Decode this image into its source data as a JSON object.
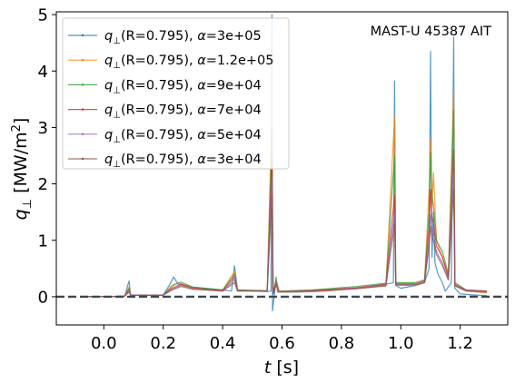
{
  "chart_data": {
    "type": "line",
    "annotation": "MAST-U 45387 AIT",
    "xlabel": {
      "var": "t",
      "unit": "[s]"
    },
    "ylabel": {
      "var": "q",
      "sub": "⊥",
      "unit": "[MW/m",
      "unit_sup": "2",
      "unit_end": "]"
    },
    "xlim": [
      -0.16,
      1.36
    ],
    "ylim": [
      -0.5,
      5.05
    ],
    "xticks": [
      "0.0",
      "0.2",
      "0.4",
      "0.6",
      "0.8",
      "1.0",
      "1.2"
    ],
    "yticks": [
      "0",
      "1",
      "2",
      "3",
      "4",
      "5"
    ],
    "zero_line": {
      "y": 0,
      "style": "dashed",
      "color": "#3c4654"
    },
    "legend_position": "upper-left",
    "series": [
      {
        "label": "q⊥(R=0.795), α=3e+05",
        "color": "#1f77b4",
        "points": [
          [
            -0.08,
            0.0
          ],
          [
            0.0,
            0.0
          ],
          [
            0.07,
            0.01
          ],
          [
            0.085,
            0.28
          ],
          [
            0.09,
            0.03
          ],
          [
            0.12,
            0.02
          ],
          [
            0.2,
            0.03
          ],
          [
            0.22,
            0.2
          ],
          [
            0.235,
            0.35
          ],
          [
            0.25,
            0.22
          ],
          [
            0.3,
            0.17
          ],
          [
            0.4,
            0.12
          ],
          [
            0.43,
            0.1
          ],
          [
            0.44,
            0.55
          ],
          [
            0.45,
            0.12
          ],
          [
            0.5,
            0.1
          ],
          [
            0.55,
            0.09
          ],
          [
            0.563,
            0.1
          ],
          [
            0.566,
            5.0
          ],
          [
            0.568,
            -0.25
          ],
          [
            0.575,
            0.05
          ],
          [
            0.58,
            0.35
          ],
          [
            0.585,
            0.08
          ],
          [
            0.65,
            0.08
          ],
          [
            0.75,
            0.1
          ],
          [
            0.85,
            0.15
          ],
          [
            0.95,
            0.22
          ],
          [
            0.975,
            0.25
          ],
          [
            0.979,
            3.82
          ],
          [
            0.983,
            0.2
          ],
          [
            1.0,
            0.15
          ],
          [
            1.05,
            0.2
          ],
          [
            1.08,
            0.25
          ],
          [
            1.095,
            0.5
          ],
          [
            1.1,
            4.35
          ],
          [
            1.105,
            0.7
          ],
          [
            1.11,
            1.5
          ],
          [
            1.115,
            0.6
          ],
          [
            1.125,
            0.4
          ],
          [
            1.14,
            0.25
          ],
          [
            1.15,
            0.1
          ],
          [
            1.17,
            0.25
          ],
          [
            1.178,
            4.6
          ],
          [
            1.182,
            0.15
          ],
          [
            1.2,
            0.05
          ],
          [
            1.25,
            0.03
          ],
          [
            1.29,
            0.02
          ]
        ]
      },
      {
        "label": "q⊥(R=0.795), α=1.2e+05",
        "color": "#ff7f0e",
        "points": [
          [
            -0.08,
            0.0
          ],
          [
            0.0,
            0.0
          ],
          [
            0.07,
            0.01
          ],
          [
            0.085,
            0.18
          ],
          [
            0.09,
            0.03
          ],
          [
            0.2,
            0.03
          ],
          [
            0.23,
            0.18
          ],
          [
            0.25,
            0.25
          ],
          [
            0.3,
            0.16
          ],
          [
            0.4,
            0.11
          ],
          [
            0.44,
            0.45
          ],
          [
            0.45,
            0.11
          ],
          [
            0.55,
            0.1
          ],
          [
            0.566,
            3.3
          ],
          [
            0.57,
            0.05
          ],
          [
            0.58,
            0.3
          ],
          [
            0.585,
            0.08
          ],
          [
            0.7,
            0.09
          ],
          [
            0.85,
            0.14
          ],
          [
            0.95,
            0.2
          ],
          [
            0.979,
            3.2
          ],
          [
            0.983,
            0.2
          ],
          [
            1.05,
            0.2
          ],
          [
            1.08,
            0.25
          ],
          [
            1.095,
            1.9
          ],
          [
            1.1,
            2.8
          ],
          [
            1.105,
            1.6
          ],
          [
            1.11,
            2.2
          ],
          [
            1.12,
            1.0
          ],
          [
            1.14,
            0.7
          ],
          [
            1.16,
            0.35
          ],
          [
            1.178,
            3.7
          ],
          [
            1.182,
            0.2
          ],
          [
            1.22,
            0.1
          ],
          [
            1.29,
            0.07
          ]
        ]
      },
      {
        "label": "q⊥(R=0.795), α=9e+04",
        "color": "#2ca02c",
        "points": [
          [
            -0.08,
            0.0
          ],
          [
            0.0,
            0.0
          ],
          [
            0.07,
            0.01
          ],
          [
            0.085,
            0.15
          ],
          [
            0.09,
            0.03
          ],
          [
            0.2,
            0.03
          ],
          [
            0.23,
            0.2
          ],
          [
            0.26,
            0.26
          ],
          [
            0.3,
            0.17
          ],
          [
            0.4,
            0.12
          ],
          [
            0.44,
            0.4
          ],
          [
            0.45,
            0.12
          ],
          [
            0.55,
            0.11
          ],
          [
            0.566,
            2.95
          ],
          [
            0.57,
            0.05
          ],
          [
            0.58,
            0.3
          ],
          [
            0.59,
            0.1
          ],
          [
            0.7,
            0.12
          ],
          [
            0.85,
            0.18
          ],
          [
            0.95,
            0.24
          ],
          [
            0.979,
            2.5
          ],
          [
            0.983,
            0.25
          ],
          [
            1.05,
            0.25
          ],
          [
            1.08,
            0.3
          ],
          [
            1.095,
            1.5
          ],
          [
            1.1,
            2.55
          ],
          [
            1.105,
            1.8
          ],
          [
            1.11,
            1.6
          ],
          [
            1.12,
            1.0
          ],
          [
            1.14,
            0.8
          ],
          [
            1.16,
            0.4
          ],
          [
            1.178,
            3.3
          ],
          [
            1.182,
            0.25
          ],
          [
            1.22,
            0.12
          ],
          [
            1.29,
            0.1
          ]
        ]
      },
      {
        "label": "q⊥(R=0.795), α=7e+04",
        "color": "#d62728",
        "points": [
          [
            -0.08,
            0.0
          ],
          [
            0.0,
            0.0
          ],
          [
            0.07,
            0.01
          ],
          [
            0.085,
            0.12
          ],
          [
            0.09,
            0.03
          ],
          [
            0.2,
            0.03
          ],
          [
            0.23,
            0.15
          ],
          [
            0.26,
            0.22
          ],
          [
            0.3,
            0.15
          ],
          [
            0.4,
            0.11
          ],
          [
            0.44,
            0.35
          ],
          [
            0.45,
            0.11
          ],
          [
            0.55,
            0.1
          ],
          [
            0.566,
            2.5
          ],
          [
            0.57,
            0.05
          ],
          [
            0.58,
            0.25
          ],
          [
            0.59,
            0.09
          ],
          [
            0.7,
            0.11
          ],
          [
            0.85,
            0.16
          ],
          [
            0.95,
            0.22
          ],
          [
            0.979,
            1.8
          ],
          [
            0.983,
            0.23
          ],
          [
            1.05,
            0.23
          ],
          [
            1.08,
            0.28
          ],
          [
            1.095,
            1.2
          ],
          [
            1.1,
            1.9
          ],
          [
            1.105,
            1.4
          ],
          [
            1.11,
            1.3
          ],
          [
            1.12,
            0.9
          ],
          [
            1.14,
            0.7
          ],
          [
            1.16,
            0.35
          ],
          [
            1.178,
            2.6
          ],
          [
            1.182,
            0.22
          ],
          [
            1.22,
            0.12
          ],
          [
            1.29,
            0.1
          ]
        ]
      },
      {
        "label": "q⊥(R=0.795), α=5e+04",
        "color": "#9467bd",
        "points": [
          [
            -0.08,
            0.0
          ],
          [
            0.0,
            0.0
          ],
          [
            0.07,
            0.01
          ],
          [
            0.085,
            0.1
          ],
          [
            0.09,
            0.03
          ],
          [
            0.2,
            0.03
          ],
          [
            0.23,
            0.13
          ],
          [
            0.26,
            0.2
          ],
          [
            0.3,
            0.14
          ],
          [
            0.4,
            0.1
          ],
          [
            0.44,
            0.3
          ],
          [
            0.45,
            0.1
          ],
          [
            0.55,
            0.1
          ],
          [
            0.566,
            2.1
          ],
          [
            0.57,
            0.05
          ],
          [
            0.58,
            0.22
          ],
          [
            0.59,
            0.09
          ],
          [
            0.7,
            0.1
          ],
          [
            0.85,
            0.15
          ],
          [
            0.95,
            0.2
          ],
          [
            0.979,
            1.5
          ],
          [
            0.983,
            0.22
          ],
          [
            1.05,
            0.22
          ],
          [
            1.08,
            0.26
          ],
          [
            1.095,
            1.0
          ],
          [
            1.1,
            1.45
          ],
          [
            1.105,
            1.2
          ],
          [
            1.11,
            1.1
          ],
          [
            1.12,
            0.8
          ],
          [
            1.14,
            0.6
          ],
          [
            1.16,
            0.3
          ],
          [
            1.178,
            2.2
          ],
          [
            1.182,
            0.2
          ],
          [
            1.22,
            0.11
          ],
          [
            1.29,
            0.09
          ]
        ]
      },
      {
        "label": "q⊥(R=0.795), α=3e+04",
        "color": "#8c564b",
        "points": [
          [
            -0.08,
            0.0
          ],
          [
            0.0,
            0.0
          ],
          [
            0.07,
            0.01
          ],
          [
            0.085,
            0.08
          ],
          [
            0.09,
            0.03
          ],
          [
            0.2,
            0.03
          ],
          [
            0.23,
            0.12
          ],
          [
            0.26,
            0.18
          ],
          [
            0.3,
            0.13
          ],
          [
            0.4,
            0.1
          ],
          [
            0.44,
            0.25
          ],
          [
            0.45,
            0.1
          ],
          [
            0.55,
            0.1
          ],
          [
            0.566,
            1.8
          ],
          [
            0.57,
            0.05
          ],
          [
            0.58,
            0.2
          ],
          [
            0.59,
            0.09
          ],
          [
            0.7,
            0.1
          ],
          [
            0.85,
            0.14
          ],
          [
            0.95,
            0.19
          ],
          [
            0.979,
            1.3
          ],
          [
            0.983,
            0.21
          ],
          [
            1.05,
            0.21
          ],
          [
            1.08,
            0.25
          ],
          [
            1.095,
            0.9
          ],
          [
            1.1,
            1.25
          ],
          [
            1.105,
            1.05
          ],
          [
            1.11,
            1.0
          ],
          [
            1.12,
            0.75
          ],
          [
            1.14,
            0.55
          ],
          [
            1.16,
            0.3
          ],
          [
            1.178,
            1.9
          ],
          [
            1.182,
            0.19
          ],
          [
            1.22,
            0.1
          ],
          [
            1.29,
            0.08
          ]
        ]
      }
    ]
  }
}
